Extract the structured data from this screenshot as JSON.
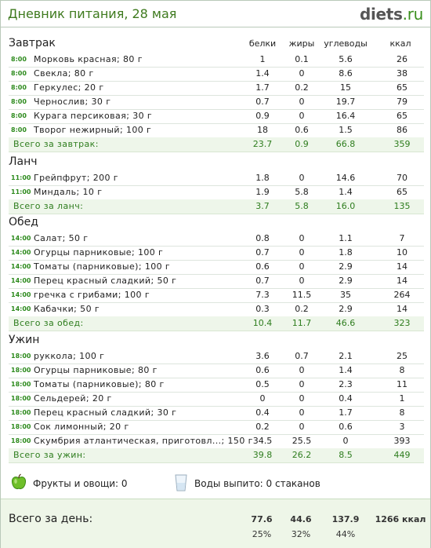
{
  "header": {
    "title": "Дневник питания, 28 мая",
    "logo_main": "diets",
    "logo_suffix": ".ru"
  },
  "columns": [
    "белки",
    "жиры",
    "углеводы",
    "ккал"
  ],
  "meals": [
    {
      "title": "Завтрак",
      "items": [
        {
          "time": "8:00",
          "name": "Морковь красная; 80 г",
          "protein": "1",
          "fat": "0.1",
          "carbs": "5.6",
          "kcal": "26"
        },
        {
          "time": "8:00",
          "name": "Свекла; 80 г",
          "protein": "1.4",
          "fat": "0",
          "carbs": "8.6",
          "kcal": "38"
        },
        {
          "time": "8:00",
          "name": "Геркулес; 20 г",
          "protein": "1.7",
          "fat": "0.2",
          "carbs": "15",
          "kcal": "65"
        },
        {
          "time": "8:00",
          "name": "Чернослив; 30 г",
          "protein": "0.7",
          "fat": "0",
          "carbs": "19.7",
          "kcal": "79"
        },
        {
          "time": "8:00",
          "name": "Курага персиковая; 30 г",
          "protein": "0.9",
          "fat": "0",
          "carbs": "16.4",
          "kcal": "65"
        },
        {
          "time": "8:00",
          "name": "Творог нежирный; 100 г",
          "protein": "18",
          "fat": "0.6",
          "carbs": "1.5",
          "kcal": "86"
        }
      ],
      "total": {
        "label": "Всего за завтрак:",
        "protein": "23.7",
        "fat": "0.9",
        "carbs": "66.8",
        "kcal": "359"
      }
    },
    {
      "title": "Ланч",
      "items": [
        {
          "time": "11:00",
          "name": "Грейпфрут; 200 г",
          "protein": "1.8",
          "fat": "0",
          "carbs": "14.6",
          "kcal": "70"
        },
        {
          "time": "11:00",
          "name": "Миндаль; 10 г",
          "protein": "1.9",
          "fat": "5.8",
          "carbs": "1.4",
          "kcal": "65"
        }
      ],
      "total": {
        "label": "Всего за ланч:",
        "protein": "3.7",
        "fat": "5.8",
        "carbs": "16.0",
        "kcal": "135"
      }
    },
    {
      "title": "Обед",
      "items": [
        {
          "time": "14:00",
          "name": "Салат; 50 г",
          "protein": "0.8",
          "fat": "0",
          "carbs": "1.1",
          "kcal": "7"
        },
        {
          "time": "14:00",
          "name": "Огурцы парниковые; 100 г",
          "protein": "0.7",
          "fat": "0",
          "carbs": "1.8",
          "kcal": "10"
        },
        {
          "time": "14:00",
          "name": "Томаты (парниковые); 100 г",
          "protein": "0.6",
          "fat": "0",
          "carbs": "2.9",
          "kcal": "14"
        },
        {
          "time": "14:00",
          "name": "Перец красный сладкий; 50 г",
          "protein": "0.7",
          "fat": "0",
          "carbs": "2.9",
          "kcal": "14"
        },
        {
          "time": "14:00",
          "name": "гречка с грибами; 100 г",
          "protein": "7.3",
          "fat": "11.5",
          "carbs": "35",
          "kcal": "264"
        },
        {
          "time": "14:00",
          "name": "Кабачки; 50 г",
          "protein": "0.3",
          "fat": "0.2",
          "carbs": "2.9",
          "kcal": "14"
        }
      ],
      "total": {
        "label": "Всего за обед:",
        "protein": "10.4",
        "fat": "11.7",
        "carbs": "46.6",
        "kcal": "323"
      }
    },
    {
      "title": "Ужин",
      "items": [
        {
          "time": "18:00",
          "name": "руккола; 100 г",
          "protein": "3.6",
          "fat": "0.7",
          "carbs": "2.1",
          "kcal": "25"
        },
        {
          "time": "18:00",
          "name": "Огурцы парниковые; 80 г",
          "protein": "0.6",
          "fat": "0",
          "carbs": "1.4",
          "kcal": "8"
        },
        {
          "time": "18:00",
          "name": "Томаты (парниковые); 80 г",
          "protein": "0.5",
          "fat": "0",
          "carbs": "2.3",
          "kcal": "11"
        },
        {
          "time": "18:00",
          "name": "Сельдерей; 20 г",
          "protein": "0",
          "fat": "0",
          "carbs": "0.4",
          "kcal": "1"
        },
        {
          "time": "18:00",
          "name": "Перец красный сладкий; 30 г",
          "protein": "0.4",
          "fat": "0",
          "carbs": "1.7",
          "kcal": "8"
        },
        {
          "time": "18:00",
          "name": "Сок лимонный; 20 г",
          "protein": "0.2",
          "fat": "0",
          "carbs": "0.6",
          "kcal": "3"
        },
        {
          "time": "18:00",
          "name": "Скумбрия атлантическая, приготовл...; 150 г",
          "protein": "34.5",
          "fat": "25.5",
          "carbs": "0",
          "kcal": "393"
        }
      ],
      "total": {
        "label": "Всего за ужин:",
        "protein": "39.8",
        "fat": "26.2",
        "carbs": "8.5",
        "kcal": "449"
      }
    }
  ],
  "misc": {
    "fruits": "Фрукты и овощи: 0",
    "water": "Воды выпито: 0 стаканов"
  },
  "day_total": {
    "label": "Всего за день:",
    "protein": "77.6",
    "fat": "44.6",
    "carbs": "137.9",
    "kcal": "1266 ккал",
    "protein_pct": "25%",
    "fat_pct": "32%",
    "carbs_pct": "44%"
  },
  "colors": {
    "accent": "#3e7a1e",
    "total_bg": "#eef6ea",
    "time": "#2e8b1e"
  },
  "icons": {
    "fruit": "green-apple-icon",
    "water": "water-glass-icon"
  }
}
